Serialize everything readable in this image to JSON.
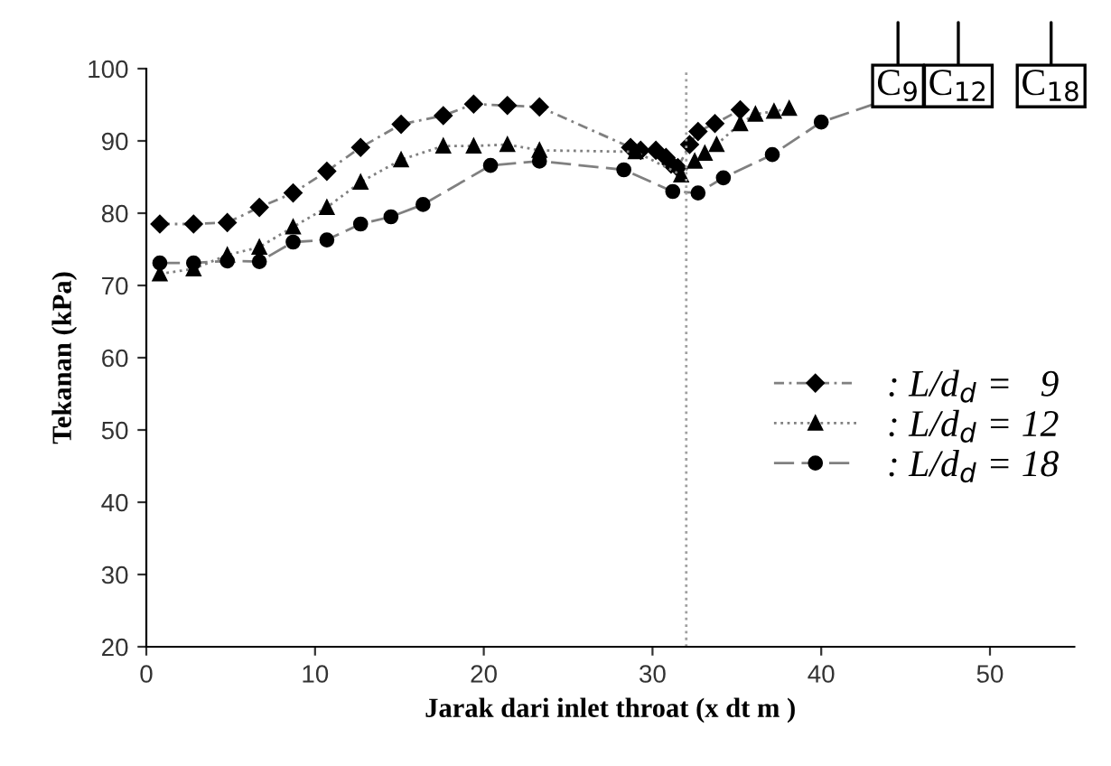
{
  "chart_data": {
    "type": "line",
    "xlabel": "Jarak dari inlet throat (x dt m )",
    "ylabel": "Tekanan (kPa)",
    "xlim": [
      0,
      55
    ],
    "ylim": [
      20,
      100
    ],
    "xticks": [
      0,
      10,
      20,
      30,
      40,
      50
    ],
    "yticks": [
      20,
      30,
      40,
      50,
      60,
      70,
      80,
      90,
      100
    ],
    "grid": false,
    "legend": "right",
    "series": [
      {
        "name": ": L/d$_{d}$ =   9",
        "color": "#000000",
        "marker": "diamond",
        "line_style": "dashed",
        "x": [
          0.8,
          2.8,
          4.8,
          6.7,
          8.7,
          10.7,
          12.7,
          15.1,
          17.6,
          19.4,
          21.4,
          23.3,
          28.7,
          29.3,
          30.2,
          30.8,
          31.1,
          31.5,
          32.2,
          32.7,
          33.7,
          35.2
        ],
        "values": [
          78.5,
          78.5,
          78.7,
          80.8,
          82.8,
          85.8,
          89.1,
          92.3,
          93.5,
          95.1,
          94.9,
          94.7,
          89.1,
          88.7,
          88.7,
          87.7,
          86.8,
          86.3,
          89.5,
          91.3,
          92.4,
          94.3
        ]
      },
      {
        "name": ": L/d$_{d}$ = 12",
        "color": "#000000",
        "marker": "triangle",
        "line_style": "dotted",
        "x": [
          0.8,
          2.8,
          4.8,
          6.7,
          8.7,
          10.7,
          12.7,
          15.1,
          17.6,
          19.4,
          21.4,
          23.3,
          29.0,
          31.7,
          32.5,
          33.1,
          33.8,
          35.2,
          36.1,
          37.2,
          38.1
        ],
        "values": [
          71.6,
          72.3,
          74.2,
          75.3,
          78.1,
          80.8,
          84.3,
          87.4,
          89.3,
          89.3,
          89.5,
          88.7,
          88.5,
          85.3,
          87.2,
          88.3,
          89.5,
          92.4,
          93.7,
          94.1,
          94.5
        ]
      },
      {
        "name": ": L/d$_{d}$ = 18",
        "color": "#000000",
        "marker": "circle",
        "line_style": "dashed",
        "x": [
          0.8,
          2.8,
          4.8,
          6.7,
          8.7,
          10.7,
          12.7,
          14.5,
          16.4,
          20.4,
          23.3,
          28.3,
          31.2,
          32.7,
          34.2,
          37.1,
          40.0,
          45.9
        ],
        "values": [
          73.1,
          73.1,
          73.4,
          73.3,
          76.0,
          76.3,
          78.5,
          79.5,
          81.2,
          86.6,
          87.2,
          86.0,
          83.0,
          82.8,
          84.9,
          88.1,
          92.6,
          97.3
        ]
      }
    ],
    "ref_lines": [
      {
        "axis": "x",
        "value": 32,
        "color": "#a0a0a0",
        "line_style": "dotted"
      }
    ],
    "annotations": [
      "C$_{9}$",
      "C$_{12}$",
      "C$_{18}$"
    ]
  }
}
